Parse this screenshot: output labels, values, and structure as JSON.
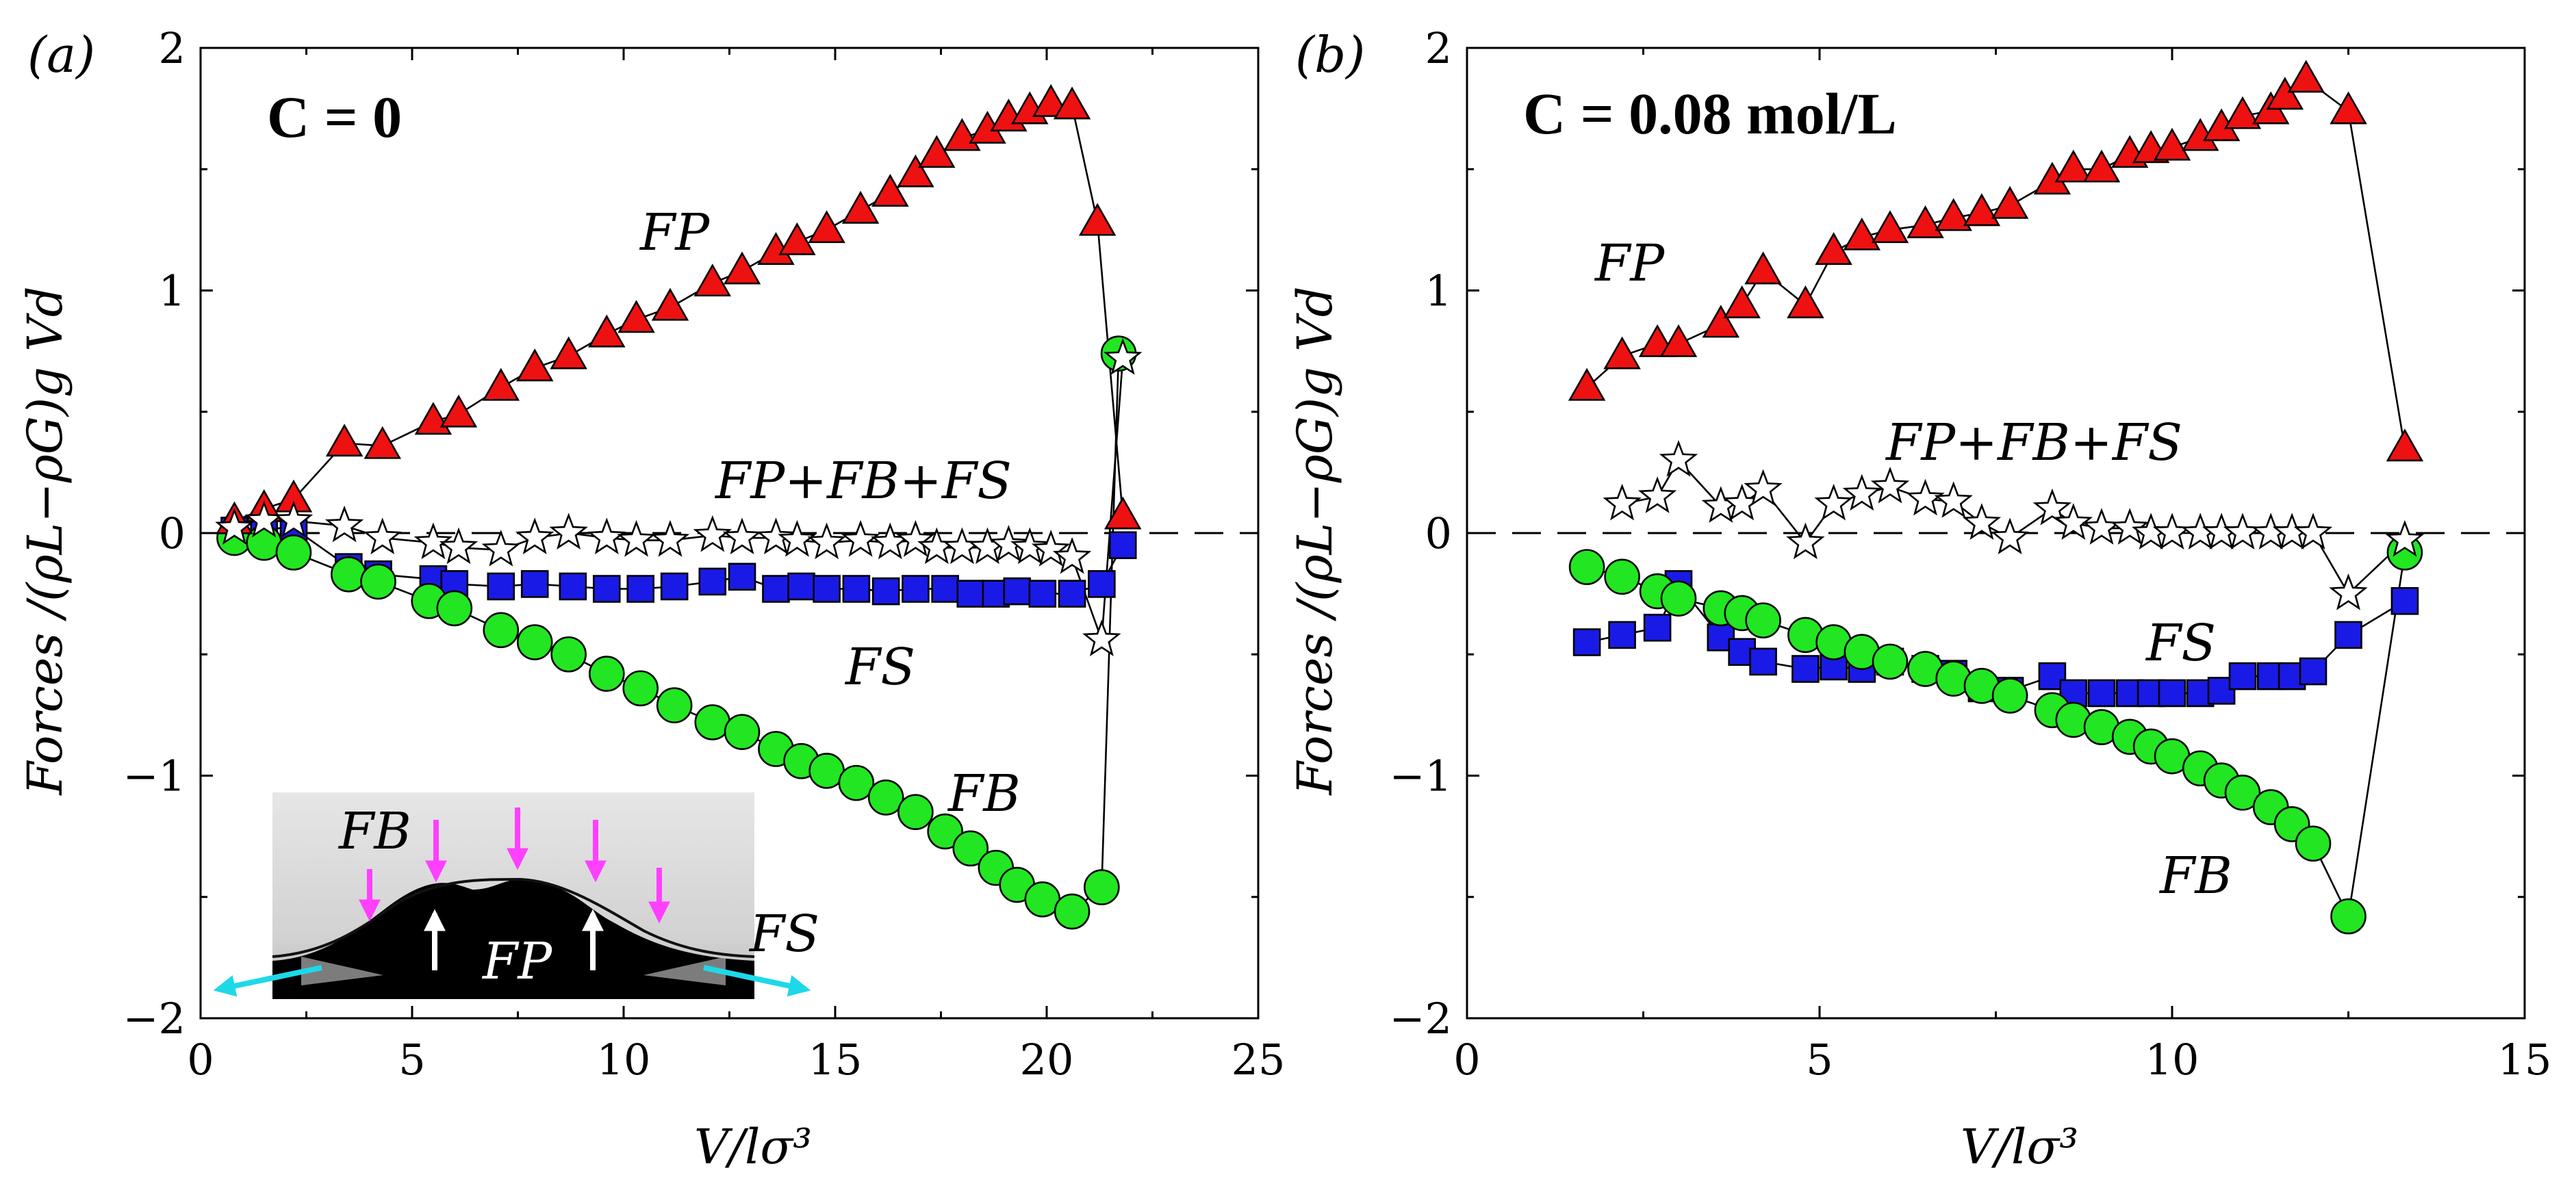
{
  "ylabel": "Forces /(ρL−ρG)g Vd",
  "inset": {
    "labels": [
      "FB",
      "FP",
      "FS"
    ],
    "arrow_colors": {
      "FB": "#ff40ff",
      "FP": "#ffffff",
      "FS": "#1ed8e8"
    }
  },
  "colors": {
    "FP": "#ee1111",
    "FB": "#22e622",
    "FS": "#1a1ae6",
    "Fsum": "#ffffff"
  },
  "chart_data": [
    {
      "type": "scatter",
      "panel_tag": "(a)",
      "condition": "C = 0",
      "xlabel": "V/lσ³",
      "ylabel": "Forces /(ρL−ρG)g Vd",
      "xlim": [
        0,
        25
      ],
      "ylim": [
        -2,
        2
      ],
      "xticks": [
        0,
        5,
        10,
        15,
        20,
        25
      ],
      "yticks": [
        -2,
        -1,
        0,
        1,
        2
      ],
      "grid": false,
      "reference_line": 0,
      "series": [
        {
          "name": "FP",
          "label": "FP",
          "marker": "triangle",
          "color": "#ee1111",
          "x": [
            0.8,
            1.5,
            2.2,
            3.4,
            4.3,
            5.5,
            6.1,
            7.1,
            7.9,
            8.7,
            9.6,
            10.3,
            11.1,
            12.1,
            12.8,
            13.6,
            14.1,
            14.8,
            15.6,
            16.3,
            16.9,
            17.4,
            18.0,
            18.6,
            19.1,
            19.6,
            20.1,
            20.6,
            21.2,
            21.8
          ],
          "y": [
            0.05,
            0.1,
            0.14,
            0.37,
            0.36,
            0.46,
            0.49,
            0.6,
            0.68,
            0.73,
            0.82,
            0.88,
            0.93,
            1.03,
            1.08,
            1.16,
            1.2,
            1.25,
            1.33,
            1.4,
            1.48,
            1.56,
            1.63,
            1.66,
            1.71,
            1.74,
            1.77,
            1.76,
            1.28,
            0.07
          ]
        },
        {
          "name": "FB",
          "label": "FB",
          "marker": "circle",
          "color": "#22e622",
          "x": [
            0.8,
            1.5,
            2.2,
            3.5,
            4.2,
            5.4,
            6.0,
            7.1,
            7.9,
            8.7,
            9.6,
            10.4,
            11.2,
            12.1,
            12.8,
            13.6,
            14.2,
            14.8,
            15.5,
            16.2,
            16.9,
            17.6,
            18.2,
            18.8,
            19.3,
            19.9,
            20.6,
            21.3,
            21.7
          ],
          "y": [
            -0.02,
            -0.04,
            -0.08,
            -0.17,
            -0.2,
            -0.28,
            -0.31,
            -0.4,
            -0.45,
            -0.5,
            -0.58,
            -0.64,
            -0.71,
            -0.78,
            -0.82,
            -0.89,
            -0.94,
            -0.98,
            -1.03,
            -1.09,
            -1.15,
            -1.23,
            -1.3,
            -1.38,
            -1.45,
            -1.51,
            -1.56,
            -1.46,
            0.74
          ]
        },
        {
          "name": "FS",
          "label": "FS",
          "marker": "square",
          "color": "#1a1ae6",
          "x": [
            0.8,
            1.5,
            2.2,
            3.5,
            4.2,
            5.5,
            6.0,
            7.1,
            7.9,
            8.8,
            9.6,
            10.4,
            11.2,
            12.1,
            12.8,
            13.6,
            14.2,
            14.8,
            15.5,
            16.2,
            16.9,
            17.6,
            18.2,
            18.8,
            19.3,
            19.9,
            20.6,
            21.3,
            21.8
          ],
          "y": [
            0.01,
            0.02,
            0.02,
            -0.14,
            -0.17,
            -0.19,
            -0.21,
            -0.22,
            -0.21,
            -0.22,
            -0.23,
            -0.23,
            -0.22,
            -0.2,
            -0.18,
            -0.23,
            -0.22,
            -0.23,
            -0.23,
            -0.24,
            -0.23,
            -0.23,
            -0.25,
            -0.25,
            -0.24,
            -0.25,
            -0.25,
            -0.21,
            -0.05
          ]
        },
        {
          "name": "Fsum",
          "label": "FP+FB+FS",
          "marker": "star",
          "color": "#ffffff",
          "x": [
            0.8,
            1.5,
            2.2,
            3.4,
            4.3,
            5.5,
            6.1,
            7.1,
            7.9,
            8.7,
            9.6,
            10.3,
            11.1,
            12.1,
            12.8,
            13.6,
            14.1,
            14.8,
            15.6,
            16.3,
            16.9,
            17.4,
            18.0,
            18.6,
            19.1,
            19.6,
            20.1,
            20.6,
            21.3,
            21.8
          ],
          "y": [
            0.02,
            0.05,
            0.05,
            0.03,
            -0.02,
            -0.04,
            -0.06,
            -0.07,
            -0.02,
            0.0,
            -0.02,
            -0.03,
            -0.03,
            -0.01,
            -0.02,
            -0.02,
            -0.03,
            -0.04,
            -0.03,
            -0.04,
            -0.03,
            -0.06,
            -0.06,
            -0.06,
            -0.05,
            -0.06,
            -0.07,
            -0.1,
            -0.44,
            0.72
          ]
        }
      ],
      "annotations": [
        "FP",
        "FP+FB+FS",
        "FS",
        "FB"
      ]
    },
    {
      "type": "scatter",
      "panel_tag": "(b)",
      "condition": "C = 0.08 mol/L",
      "xlabel": "V/lσ³",
      "ylabel": "Forces /(ρL−ρG)g Vd",
      "xlim": [
        0,
        15
      ],
      "ylim": [
        -2,
        2
      ],
      "xticks": [
        0,
        5,
        10,
        15
      ],
      "yticks": [
        -2,
        -1,
        0,
        1,
        2
      ],
      "grid": false,
      "reference_line": 0,
      "series": [
        {
          "name": "FP",
          "label": "FP",
          "marker": "triangle",
          "color": "#ee1111",
          "x": [
            1.7,
            2.2,
            2.7,
            3.0,
            3.6,
            3.9,
            4.2,
            4.8,
            5.2,
            5.6,
            6.0,
            6.5,
            6.9,
            7.3,
            7.7,
            8.3,
            8.6,
            9.0,
            9.4,
            9.7,
            10.0,
            10.4,
            10.7,
            11.0,
            11.4,
            11.6,
            11.9,
            12.5,
            13.3
          ],
          "y": [
            0.6,
            0.73,
            0.78,
            0.78,
            0.86,
            0.94,
            1.08,
            0.94,
            1.16,
            1.22,
            1.25,
            1.27,
            1.3,
            1.32,
            1.35,
            1.45,
            1.5,
            1.5,
            1.56,
            1.58,
            1.59,
            1.63,
            1.67,
            1.72,
            1.74,
            1.8,
            1.87,
            1.74,
            0.35
          ]
        },
        {
          "name": "FB",
          "label": "FB",
          "marker": "circle",
          "color": "#22e622",
          "x": [
            1.7,
            2.2,
            2.7,
            3.0,
            3.6,
            3.9,
            4.2,
            4.8,
            5.2,
            5.6,
            6.0,
            6.5,
            6.9,
            7.3,
            7.7,
            8.3,
            8.6,
            9.0,
            9.4,
            9.7,
            10.0,
            10.4,
            10.7,
            11.0,
            11.4,
            11.7,
            12.0,
            12.5,
            13.3
          ],
          "y": [
            -0.14,
            -0.18,
            -0.24,
            -0.27,
            -0.31,
            -0.33,
            -0.36,
            -0.42,
            -0.45,
            -0.49,
            -0.53,
            -0.56,
            -0.6,
            -0.63,
            -0.67,
            -0.73,
            -0.77,
            -0.8,
            -0.84,
            -0.88,
            -0.92,
            -0.97,
            -1.02,
            -1.07,
            -1.13,
            -1.2,
            -1.28,
            -1.58,
            -0.08
          ]
        },
        {
          "name": "FS",
          "label": "FS",
          "marker": "square",
          "color": "#1a1ae6",
          "x": [
            1.7,
            2.2,
            2.7,
            3.0,
            3.6,
            3.9,
            4.2,
            4.8,
            5.2,
            5.6,
            6.0,
            6.5,
            6.9,
            7.3,
            7.7,
            8.3,
            8.6,
            9.0,
            9.4,
            9.7,
            10.0,
            10.4,
            10.7,
            11.0,
            11.4,
            11.7,
            12.0,
            12.5,
            13.3
          ],
          "y": [
            -0.45,
            -0.42,
            -0.39,
            -0.21,
            -0.43,
            -0.49,
            -0.53,
            -0.56,
            -0.55,
            -0.56,
            -0.53,
            -0.56,
            -0.58,
            -0.64,
            -0.65,
            -0.59,
            -0.66,
            -0.66,
            -0.66,
            -0.66,
            -0.66,
            -0.66,
            -0.65,
            -0.59,
            -0.59,
            -0.59,
            -0.57,
            -0.42,
            -0.28
          ]
        },
        {
          "name": "Fsum",
          "label": "FP+FB+FS",
          "marker": "star",
          "color": "#ffffff",
          "x": [
            2.2,
            2.7,
            3.0,
            3.6,
            3.9,
            4.2,
            4.8,
            5.2,
            5.6,
            6.0,
            6.5,
            6.9,
            7.3,
            7.7,
            8.3,
            8.6,
            9.0,
            9.4,
            9.7,
            10.0,
            10.4,
            10.7,
            11.0,
            11.4,
            11.7,
            12.0,
            12.5,
            13.3
          ],
          "y": [
            0.12,
            0.15,
            0.3,
            0.11,
            0.12,
            0.18,
            -0.04,
            0.12,
            0.16,
            0.19,
            0.14,
            0.13,
            0.04,
            -0.02,
            0.1,
            0.04,
            0.02,
            0.02,
            0.0,
            0.0,
            0.0,
            0.0,
            0.0,
            0.0,
            0.0,
            0.0,
            -0.25,
            -0.03
          ]
        }
      ],
      "annotations": [
        "FP",
        "FP+FB+FS",
        "FS",
        "FB"
      ]
    }
  ]
}
